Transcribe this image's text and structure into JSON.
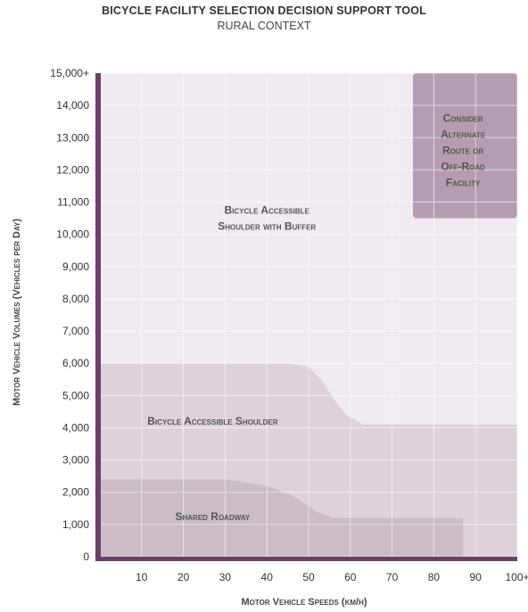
{
  "chart_data": {
    "type": "area",
    "title": "BICYCLE FACILITY SELECTION DECISION SUPPORT TOOL",
    "subtitle": "RURAL CONTEXT",
    "xlabel": "Motor Vehicle Speeds (km/h)",
    "ylabel": "Motor Vehicle Volumes (Vehicles per Day)",
    "xlim": [
      0,
      100
    ],
    "ylim": [
      0,
      15000
    ],
    "x_ticks": [
      10,
      20,
      30,
      40,
      50,
      60,
      70,
      80,
      90,
      100
    ],
    "x_tick_labels": [
      "10",
      "20",
      "30",
      "40",
      "50",
      "60",
      "70",
      "80",
      "90",
      "100+"
    ],
    "y_ticks": [
      0,
      1000,
      2000,
      3000,
      4000,
      5000,
      6000,
      7000,
      8000,
      9000,
      10000,
      11000,
      12000,
      13000,
      14000,
      15000
    ],
    "y_tick_labels": [
      "0",
      "1,000",
      "2,000",
      "3,000",
      "4,000",
      "5,000",
      "6,000",
      "7,000",
      "8,000",
      "9,000",
      "10,000",
      "11,000",
      "12,000",
      "13,000",
      "14,000",
      "15,000+"
    ],
    "grid": true,
    "regions": [
      {
        "name": "Bicycle Accessible Shoulder with Buffer",
        "label_lines": [
          "Bicycle Accessible",
          "Shoulder with Buffer"
        ],
        "label_at": [
          40,
          10500
        ],
        "color": "#f2eaf1",
        "x": [
          0,
          100
        ],
        "y_upper": [
          15000,
          15000
        ]
      },
      {
        "name": "Bicycle Accessible Shoulder",
        "label_lines": [
          "Bicycle Accessible Shoulder"
        ],
        "label_at": [
          27,
          4200
        ],
        "color": "#ddd2dc",
        "x": [
          0,
          45,
          50,
          53,
          56,
          59,
          63,
          100
        ],
        "y_upper": [
          6000,
          6000,
          5900,
          5500,
          4900,
          4400,
          4100,
          4100
        ]
      },
      {
        "name": "Shared Roadway",
        "label_lines": [
          "Shared Roadway"
        ],
        "label_at": [
          27,
          1250
        ],
        "color": "#cabdc8",
        "x": [
          0,
          30,
          40,
          46,
          52,
          56,
          87
        ],
        "y_upper": [
          2400,
          2400,
          2200,
          1900,
          1400,
          1200,
          1200
        ]
      },
      {
        "name": "Consider Alternate Route or Off-Road Facility",
        "label_lines": [
          "Consider",
          "Alternate",
          "Route or",
          "Off-Road",
          "Facility"
        ],
        "label_at": [
          87,
          12600
        ],
        "color": "#b59db1",
        "x": [
          75,
          100
        ],
        "y_range": [
          10500,
          15000
        ]
      }
    ],
    "axis_color": "#6b3f68"
  }
}
